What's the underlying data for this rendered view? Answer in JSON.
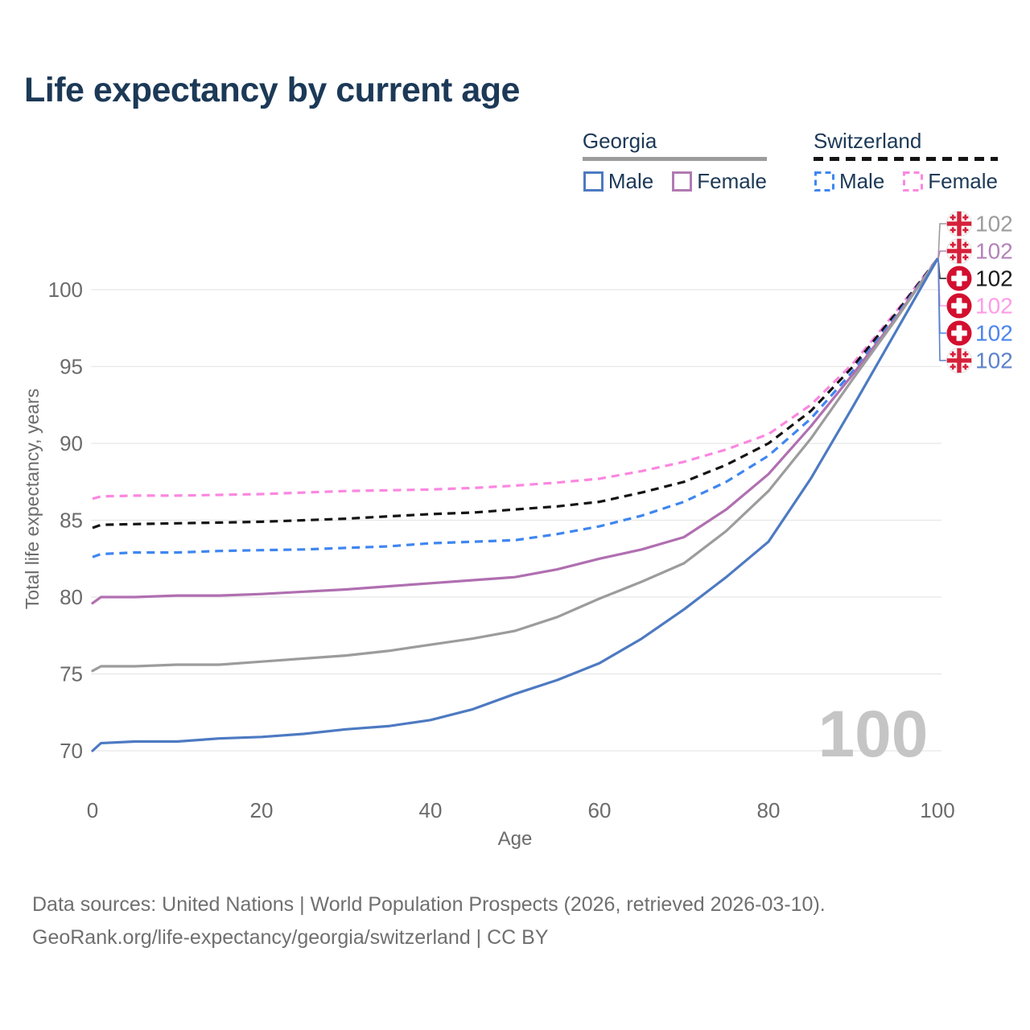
{
  "page": {
    "title": "Life expectancy by current age",
    "background": "#ffffff"
  },
  "legend": {
    "position": "top-right",
    "groups": [
      {
        "name": "Georgia",
        "line_style": "solid",
        "underline_color": "#9c9c9c",
        "items": [
          {
            "label": "Male",
            "color": "#4d7ac2",
            "dashed": false
          },
          {
            "label": "Female",
            "color": "#b07ab2",
            "dashed": false
          }
        ]
      },
      {
        "name": "Switzerland",
        "line_style": "dashed",
        "underline_color": "#141414",
        "items": [
          {
            "label": "Male",
            "color": "#3f86f0",
            "dashed": true
          },
          {
            "label": "Female",
            "color": "#fb87e0",
            "dashed": true
          }
        ]
      }
    ]
  },
  "chart_data": {
    "type": "line",
    "title": "Life expectancy by current age",
    "xlabel": "Age",
    "ylabel": "Total life expectancy, years",
    "xlim": [
      0,
      100
    ],
    "ylim": [
      68.5,
      103.5
    ],
    "xticks": [
      0,
      20,
      40,
      60,
      80,
      100
    ],
    "yticks": [
      70,
      75,
      80,
      85,
      90,
      95,
      100
    ],
    "grid": "horizontal",
    "legend_position": "top-right",
    "age_watermark": "100",
    "watermark_color": "#c5c5c5",
    "x": [
      0,
      1,
      5,
      10,
      15,
      20,
      25,
      30,
      35,
      40,
      45,
      50,
      55,
      60,
      65,
      70,
      75,
      80,
      85,
      90,
      95,
      100
    ],
    "series": [
      {
        "name": "Switzerland Female",
        "id": "switzerland-female",
        "color": "#fb87e0",
        "dashed": true,
        "values": [
          86.4,
          86.55,
          86.6,
          86.6,
          86.65,
          86.7,
          86.8,
          86.9,
          86.95,
          87.0,
          87.1,
          87.25,
          87.45,
          87.7,
          88.2,
          88.8,
          89.6,
          90.6,
          92.5,
          95.2,
          98.5,
          102
        ]
      },
      {
        "name": "Switzerland Total",
        "id": "switzerland-total",
        "color": "#141414",
        "dashed": true,
        "values": [
          84.5,
          84.7,
          84.75,
          84.8,
          84.85,
          84.9,
          85.0,
          85.1,
          85.25,
          85.4,
          85.5,
          85.7,
          85.9,
          86.2,
          86.8,
          87.5,
          88.6,
          90.0,
          92.1,
          95.0,
          98.4,
          102
        ]
      },
      {
        "name": "Switzerland Male",
        "id": "switzerland-male",
        "color": "#3f86f0",
        "dashed": true,
        "values": [
          82.6,
          82.8,
          82.9,
          82.9,
          83.0,
          83.05,
          83.1,
          83.2,
          83.3,
          83.5,
          83.6,
          83.7,
          84.1,
          84.6,
          85.3,
          86.2,
          87.5,
          89.2,
          91.6,
          94.7,
          98.2,
          102
        ]
      },
      {
        "name": "Georgia Female",
        "id": "georgia-female",
        "color": "#b06fb0",
        "dashed": false,
        "values": [
          79.6,
          80.0,
          80.0,
          80.1,
          80.1,
          80.2,
          80.35,
          80.5,
          80.7,
          80.9,
          81.1,
          81.3,
          81.8,
          82.5,
          83.1,
          83.9,
          85.7,
          88.0,
          91.1,
          94.5,
          98.1,
          102
        ]
      },
      {
        "name": "Georgia Total",
        "id": "georgia-total",
        "color": "#9c9c9c",
        "dashed": false,
        "values": [
          75.2,
          75.5,
          75.5,
          75.6,
          75.6,
          75.8,
          76.0,
          76.2,
          76.5,
          76.9,
          77.3,
          77.8,
          78.7,
          79.9,
          81.0,
          82.2,
          84.3,
          86.9,
          90.3,
          94.2,
          98.0,
          102
        ]
      },
      {
        "name": "Georgia Male",
        "id": "georgia-male",
        "color": "#4d7ac2",
        "dashed": false,
        "values": [
          70.0,
          70.5,
          70.6,
          70.6,
          70.8,
          70.9,
          71.1,
          71.4,
          71.6,
          72.0,
          72.7,
          73.7,
          74.6,
          75.7,
          77.3,
          79.2,
          81.3,
          83.6,
          87.7,
          92.4,
          97.2,
          102
        ]
      }
    ],
    "end_labels": [
      {
        "series": "georgia-total",
        "flag": "georgia",
        "text": "102",
        "color": "#9c9c9c"
      },
      {
        "series": "georgia-female",
        "flag": "georgia",
        "text": "102",
        "color": "#b383b8"
      },
      {
        "series": "switzerland-total",
        "flag": "switzerland",
        "text": "102",
        "color": "#1a1a1a"
      },
      {
        "series": "switzerland-female",
        "flag": "switzerland",
        "text": "102",
        "color": "#ff9be7"
      },
      {
        "series": "switzerland-male",
        "flag": "switzerland",
        "text": "102",
        "color": "#4c85ee"
      },
      {
        "series": "georgia-male",
        "flag": "georgia",
        "text": "102",
        "color": "#5c82ca"
      }
    ]
  },
  "footer": {
    "line1": "Data sources: United Nations | World Population Prospects (2026, retrieved 2026-03-10).",
    "line2": "GeoRank.org/life-expectancy/georgia/switzerland | CC BY"
  }
}
